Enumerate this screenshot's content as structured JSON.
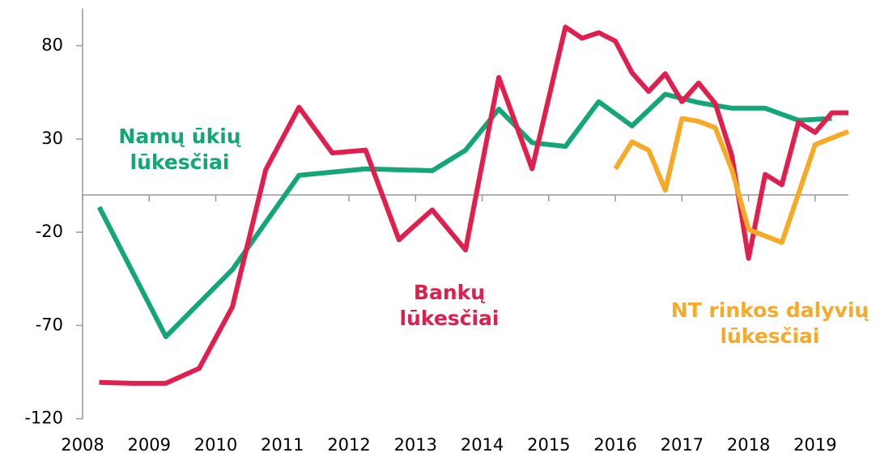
{
  "chart_data": {
    "type": "line",
    "xlim": [
      2008,
      2019.5
    ],
    "xticks": [
      2008,
      2009,
      2010,
      2011,
      2012,
      2013,
      2014,
      2015,
      2016,
      2017,
      2018,
      2019
    ],
    "ylim": [
      -120,
      100
    ],
    "yticks": [
      -120,
      -70,
      -20,
      30,
      80
    ],
    "grid": false,
    "series": [
      {
        "name": "Namų ūkių lūkesčiai",
        "color": "#13a777",
        "x": [
          2008.25,
          2009.25,
          2010.25,
          2011.25,
          2012.25,
          2013.25,
          2013.75,
          2014.25,
          2014.75,
          2015.25,
          2015.75,
          2016.25,
          2016.75,
          2017.25,
          2017.75,
          2018.25,
          2018.75,
          2019.25
        ],
        "values": [
          -6.5,
          -76,
          -40,
          10.5,
          14,
          13,
          24,
          46,
          28,
          26,
          50,
          37,
          54,
          49.5,
          46.5,
          46.5,
          40,
          41
        ]
      },
      {
        "name": "Bankų lūkesčiai",
        "color": "#e01f4e",
        "x": [
          2008.25,
          2008.75,
          2009.25,
          2009.75,
          2010.25,
          2010.75,
          2011.25,
          2011.75,
          2012.25,
          2012.75,
          2013.25,
          2013.75,
          2014.25,
          2014.75,
          2015.25,
          2015.5,
          2015.75,
          2016,
          2016.25,
          2016.5,
          2016.75,
          2017,
          2017.25,
          2017.5,
          2017.75,
          2018,
          2018.25,
          2018.5,
          2018.75,
          2019,
          2019.25,
          2019.5
        ],
        "values": [
          -100.5,
          -101,
          -101,
          -93,
          -60,
          13.5,
          47,
          22.5,
          24,
          -24,
          -8,
          -29.5,
          63,
          14,
          90,
          84,
          87,
          82.5,
          65.5,
          55.5,
          65,
          50,
          60,
          49,
          21,
          -34,
          11,
          5.5,
          39,
          33.5,
          44,
          44
        ]
      },
      {
        "name": "NT rinkos dalyvių lūkesčiai",
        "color": "#f8a926",
        "x": [
          2016,
          2016.25,
          2016.5,
          2016.75,
          2017,
          2017.25,
          2017.5,
          2017.75,
          2018,
          2018.25,
          2018.5,
          2019,
          2019.5
        ],
        "values": [
          14,
          28.5,
          24,
          2.5,
          41,
          39.5,
          36,
          13.5,
          -18.5,
          -22,
          -25.5,
          27,
          34
        ]
      }
    ]
  }
}
